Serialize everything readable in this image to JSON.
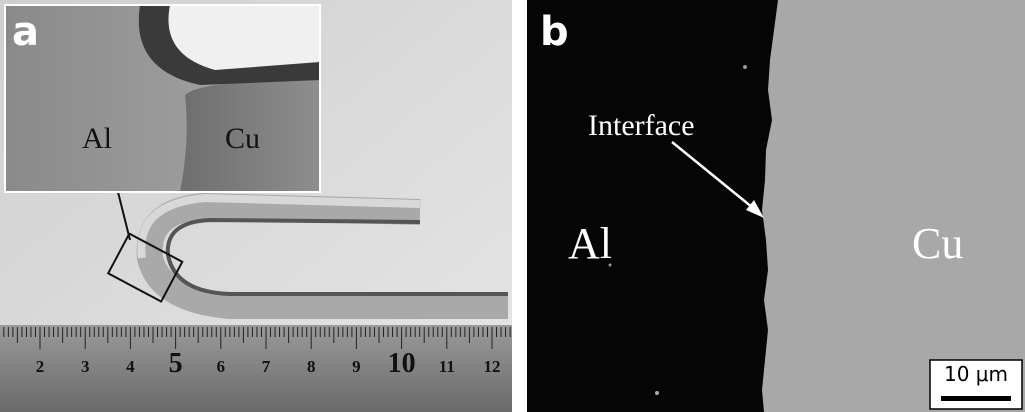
{
  "panel_a": {
    "label": "a",
    "inset": {
      "left_label": "Al",
      "right_label": "Cu"
    },
    "ruler_labels": [
      "2",
      "3",
      "4",
      "5",
      "6",
      "7",
      "8",
      "9",
      "10",
      "11",
      "12"
    ]
  },
  "panel_b": {
    "label": "b",
    "annotation": "Interface",
    "left_label": "Al",
    "right_label": "Cu",
    "scale_bar": "10 μm"
  }
}
